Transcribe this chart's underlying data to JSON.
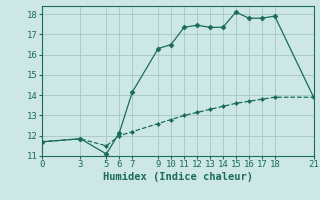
{
  "title": "",
  "xlabel": "Humidex (Indice chaleur)",
  "bg_color": "#cde8e4",
  "grid_color": "#aaccc8",
  "line_color": "#1a6b5a",
  "xlim": [
    0,
    21
  ],
  "ylim": [
    11,
    18.4
  ],
  "xticks": [
    0,
    3,
    5,
    6,
    7,
    9,
    10,
    11,
    12,
    13,
    14,
    15,
    16,
    17,
    18,
    21
  ],
  "yticks": [
    11,
    12,
    13,
    14,
    15,
    16,
    17,
    18
  ],
  "line1_x": [
    0,
    3,
    5,
    6,
    7,
    9,
    10,
    11,
    12,
    13,
    14,
    15,
    16,
    17,
    18,
    21
  ],
  "line1_y": [
    11.7,
    11.85,
    11.1,
    12.15,
    14.15,
    16.3,
    16.5,
    17.35,
    17.45,
    17.35,
    17.35,
    18.1,
    17.8,
    17.8,
    17.9,
    13.9
  ],
  "line2_x": [
    0,
    3,
    5,
    6,
    7,
    9,
    10,
    11,
    12,
    13,
    14,
    15,
    16,
    17,
    18,
    21
  ],
  "line2_y": [
    11.7,
    11.85,
    11.5,
    12.0,
    12.2,
    12.6,
    12.8,
    13.0,
    13.15,
    13.3,
    13.45,
    13.6,
    13.7,
    13.8,
    13.9,
    13.9
  ],
  "tick_fontsize": 6.5,
  "xlabel_fontsize": 7.5
}
